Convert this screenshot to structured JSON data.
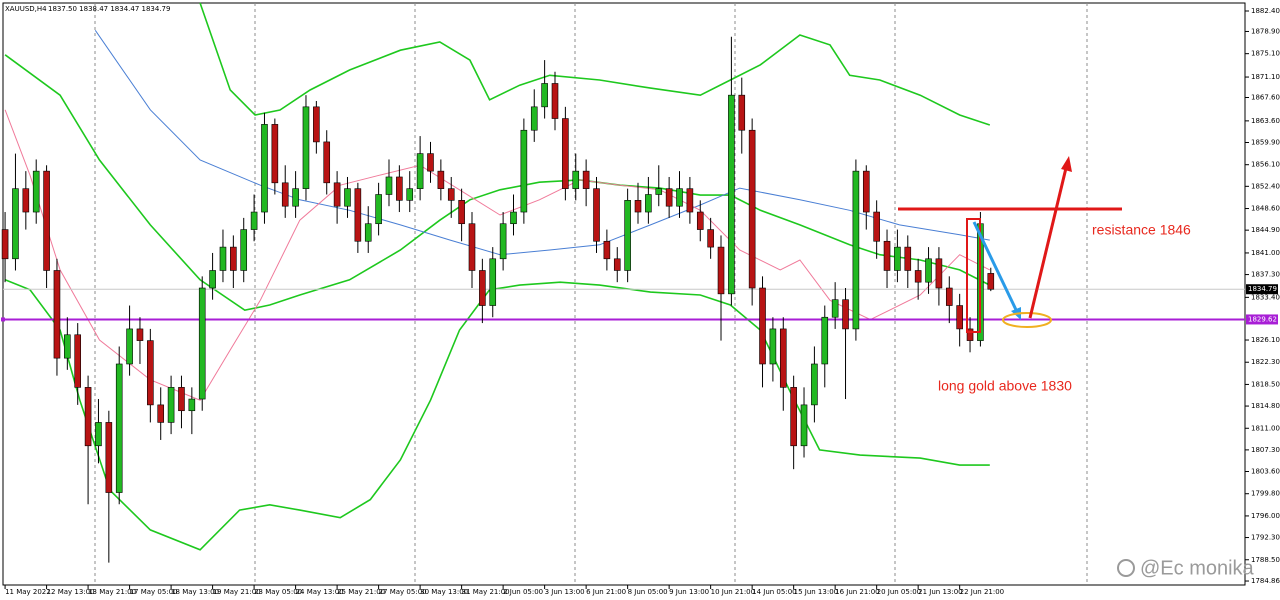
{
  "chart_data": {
    "type": "candlestick",
    "title": "XAUUSD,H4",
    "ohlc_readout": "1837.50 1838.47 1834.47 1834.79",
    "xlim": [
      -0.2,
      119.5
    ],
    "xticks": [
      {
        "value": 0,
        "label": "11 May 2022"
      },
      {
        "value": 4,
        "label": "12 May 13:00"
      },
      {
        "value": 8,
        "label": "13 May 21:00"
      },
      {
        "value": 12,
        "label": "17 May 05:00"
      },
      {
        "value": 16,
        "label": "18 May 13:00"
      },
      {
        "value": 20,
        "label": "19 May 21:00"
      },
      {
        "value": 24,
        "label": "23 May 05:00"
      },
      {
        "value": 28,
        "label": "24 May 13:00"
      },
      {
        "value": 32,
        "label": "25 May 21:00"
      },
      {
        "value": 36,
        "label": "27 May 05:00"
      },
      {
        "value": 40,
        "label": "30 May 13:00"
      },
      {
        "value": 44,
        "label": "31 May 21:00"
      },
      {
        "value": 48,
        "label": "2 Jun 05:00"
      },
      {
        "value": 52,
        "label": "3 Jun 13:00"
      },
      {
        "value": 56,
        "label": "6 Jun 21:00"
      },
      {
        "value": 60,
        "label": "8 Jun 05:00"
      },
      {
        "value": 64,
        "label": "9 Jun 13:00"
      },
      {
        "value": 68,
        "label": "10 Jun 21:00"
      },
      {
        "value": 72,
        "label": "14 Jun 05:00"
      },
      {
        "value": 76,
        "label": "15 Jun 13:00"
      },
      {
        "value": 80,
        "label": "16 Jun 21:00"
      },
      {
        "value": 84,
        "label": "20 Jun 05:00"
      },
      {
        "value": 88,
        "label": "21 Jun 13:00"
      },
      {
        "value": 92,
        "label": "22 Jun 21:00"
      }
    ],
    "ylim": [
      1784.18,
      1883.77
    ],
    "yticks": [
      {
        "value": 1882.4,
        "label": "1882.40"
      },
      {
        "value": 1878.9,
        "label": "1878.90"
      },
      {
        "value": 1875.1,
        "label": "1875.10"
      },
      {
        "value": 1871.1,
        "label": "1871.10"
      },
      {
        "value": 1867.6,
        "label": "1867.60"
      },
      {
        "value": 1863.6,
        "label": "1863.60"
      },
      {
        "value": 1859.9,
        "label": "1859.90"
      },
      {
        "value": 1856.1,
        "label": "1856.10"
      },
      {
        "value": 1852.4,
        "label": "1852.40"
      },
      {
        "value": 1848.6,
        "label": "1848.60"
      },
      {
        "value": 1844.9,
        "label": "1844.90"
      },
      {
        "value": 1841,
        "label": "1841.00"
      },
      {
        "value": 1837.3,
        "label": "1837.30"
      },
      {
        "value": 1833.4,
        "label": "1833.40"
      },
      {
        "value": 1826.1,
        "label": "1826.10"
      },
      {
        "value": 1822.3,
        "label": "1822.30"
      },
      {
        "value": 1818.5,
        "label": "1818.50"
      },
      {
        "value": 1814.8,
        "label": "1814.80"
      },
      {
        "value": 1811,
        "label": "1811.00"
      },
      {
        "value": 1807.3,
        "label": "1807.30"
      },
      {
        "value": 1803.6,
        "label": "1803.60"
      },
      {
        "value": 1799.8,
        "label": "1799.80"
      },
      {
        "value": 1796,
        "label": "1796.00"
      },
      {
        "value": 1792.3,
        "label": "1792.30"
      },
      {
        "value": 1788.5,
        "label": "1788.50"
      },
      1784.86
    ],
    "up_color": "#22b822",
    "down_color": "#b81414",
    "open": [
      1845,
      1840,
      1852,
      1848,
      1855,
      1838,
      1823,
      1827,
      1818,
      1808,
      1812,
      1800,
      1822,
      1828,
      1826,
      1815,
      1812,
      1818,
      1814,
      1816,
      1835,
      1838,
      1842,
      1838,
      1845,
      1848,
      1863,
      1853,
      1849,
      1852,
      1866,
      1860,
      1853,
      1849,
      1852,
      1843,
      1846,
      1851,
      1854,
      1850,
      1852,
      1858,
      1855,
      1852,
      1850,
      1846,
      1838,
      1832,
      1840,
      1846,
      1848,
      1862,
      1866,
      1870,
      1864,
      1852,
      1855,
      1852,
      1843,
      1840,
      1838,
      1850,
      1848,
      1851,
      1852,
      1849,
      1852,
      1848,
      1845,
      1842,
      1834,
      1868,
      1862,
      1835,
      1822,
      1828,
      1818,
      1808,
      1815,
      1822,
      1830,
      1833,
      1828,
      1855,
      1848,
      1843,
      1838,
      1842,
      1838,
      1836,
      1840,
      1835,
      1832,
      1828,
      1826,
      1837.5
    ],
    "high": [
      1848,
      1858,
      1855,
      1857,
      1856,
      1840,
      1830,
      1829,
      1820,
      1816,
      1814,
      1825,
      1832,
      1830,
      1828,
      1818,
      1820,
      1820,
      1818,
      1837,
      1841,
      1845,
      1844,
      1847,
      1851,
      1865,
      1864,
      1856,
      1855,
      1868,
      1867,
      1862,
      1855,
      1854,
      1853,
      1849,
      1853,
      1857,
      1856,
      1855,
      1861,
      1860,
      1857,
      1854,
      1852,
      1848,
      1840,
      1842,
      1848,
      1851,
      1864,
      1869,
      1874,
      1872,
      1866,
      1858,
      1857,
      1854,
      1845,
      1842,
      1852,
      1853,
      1854,
      1856,
      1854,
      1855,
      1854,
      1850,
      1847,
      1844,
      1878,
      1871,
      1864,
      1837,
      1830,
      1830,
      1820,
      1818,
      1825,
      1832,
      1836,
      1835,
      1857,
      1856,
      1850,
      1845,
      1845,
      1844,
      1840,
      1842,
      1842,
      1837,
      1834,
      1830,
      1848,
      1838.47
    ],
    "low": [
      1836,
      1838,
      1845,
      1846,
      1835,
      1820,
      1821,
      1815,
      1798,
      1805,
      1788,
      1798,
      1820,
      1822,
      1812,
      1809,
      1810,
      1811,
      1810,
      1814,
      1833,
      1836,
      1835,
      1836,
      1843,
      1846,
      1851,
      1847,
      1847,
      1850,
      1858,
      1851,
      1846,
      1847,
      1841,
      1841,
      1844,
      1849,
      1848,
      1848,
      1850,
      1853,
      1850,
      1847,
      1843,
      1835,
      1829,
      1830,
      1838,
      1844,
      1846,
      1860,
      1864,
      1862,
      1850,
      1850,
      1849,
      1841,
      1838,
      1836,
      1836,
      1846,
      1846,
      1849,
      1847,
      1847,
      1846,
      1843,
      1840,
      1826,
      1832,
      1858,
      1832,
      1818,
      1819,
      1814,
      1804,
      1806,
      1812,
      1818,
      1828,
      1816,
      1826,
      1845,
      1840,
      1835,
      1836,
      1835,
      1833,
      1834,
      1832,
      1829,
      1825,
      1824,
      1825,
      1834.47
    ],
    "close": [
      1840,
      1852,
      1848,
      1855,
      1838,
      1823,
      1827,
      1818,
      1808,
      1812,
      1800,
      1822,
      1828,
      1826,
      1815,
      1812,
      1818,
      1814,
      1816,
      1835,
      1838,
      1842,
      1838,
      1845,
      1848,
      1863,
      1853,
      1849,
      1852,
      1866,
      1860,
      1853,
      1849,
      1852,
      1843,
      1846,
      1851,
      1854,
      1850,
      1852,
      1858,
      1855,
      1852,
      1850,
      1846,
      1838,
      1832,
      1840,
      1846,
      1848,
      1862,
      1866,
      1870,
      1864,
      1852,
      1855,
      1852,
      1843,
      1840,
      1838,
      1850,
      1848,
      1851,
      1852,
      1849,
      1852,
      1848,
      1845,
      1842,
      1834,
      1868,
      1862,
      1835,
      1822,
      1828,
      1818,
      1808,
      1815,
      1822,
      1830,
      1833,
      1828,
      1855,
      1848,
      1843,
      1838,
      1842,
      1838,
      1836,
      1840,
      1835,
      1832,
      1828,
      1826,
      1846,
      1834.79
    ],
    "overlays": [
      {
        "color": "#1ec81e",
        "x": [
          18.8,
          21.7,
          24.1,
          26.5,
          29.4,
          33.2,
          38.1,
          41.9,
          44.8,
          46.7,
          49.6,
          52.5,
          57.3,
          62.2,
          67.0,
          69.9,
          72.8,
          76.6,
          79.5,
          81.4,
          84.3,
          88.2,
          92.0,
          94.9
        ],
        "values": [
          1883.77,
          1868.88,
          1864.6,
          1865.46,
          1868.88,
          1872.3,
          1875.7,
          1877.1,
          1874.0,
          1867.2,
          1869.7,
          1871.4,
          1870.6,
          1869.2,
          1868.0,
          1870.6,
          1873.2,
          1878.3,
          1876.6,
          1871.4,
          1870.6,
          1868.0,
          1864.6,
          1862.9
        ]
      },
      {
        "color": "#1ec81e",
        "x": [
          0,
          5.3,
          9.1,
          14.0,
          18.8,
          23.1,
          25.5,
          28.4,
          33.2,
          38.1,
          41.9,
          44.8,
          47.7,
          51.5,
          55.4,
          59.3,
          63.1,
          67.0,
          69.9,
          72.8,
          76.6,
          81.4,
          84.3,
          88.2,
          92.0,
          94.9
        ],
        "values": [
          1874.9,
          1868.0,
          1856.9,
          1845.8,
          1836.4,
          1831.2,
          1832.1,
          1833.8,
          1836.4,
          1841.5,
          1846.6,
          1850.1,
          1851.8,
          1853.1,
          1853.5,
          1852.6,
          1852.1,
          1850.9,
          1850.9,
          1848.3,
          1845.8,
          1842.4,
          1840.7,
          1839.8,
          1838.1,
          1835.5
        ]
      },
      {
        "color": "#1ec81e",
        "x": [
          0,
          2.4,
          5.3,
          7.2,
          10.1,
          14.0,
          18.8,
          22.6,
          25.5,
          28.4,
          32.3,
          35.2,
          38.1,
          41.0,
          43.8,
          46.7,
          49.6,
          53.5,
          57.3,
          62.2,
          67.0,
          69.9,
          72.8,
          75.6,
          78.5,
          82.4,
          88.2,
          92.0,
          94.9
        ],
        "values": [
          1836.4,
          1834.7,
          1827.8,
          1815.8,
          1800.4,
          1793.6,
          1790.2,
          1797.0,
          1797.9,
          1797.0,
          1795.7,
          1798.8,
          1805.6,
          1815.8,
          1827.8,
          1834.7,
          1835.5,
          1836.0,
          1835.5,
          1834.3,
          1833.8,
          1832.1,
          1827.8,
          1817.5,
          1807.3,
          1806.4,
          1805.9,
          1804.7,
          1804.7
        ]
      },
      {
        "color": "#4a7fd4",
        "x": [
          8.7,
          14.0,
          18.8,
          24.6,
          28.4,
          33.2,
          38.1,
          42.9,
          47.7,
          52.5,
          57.3,
          62.2,
          67.0,
          70.8,
          76.6,
          81.4,
          86.2,
          92.0,
          94.9
        ],
        "values": [
          1879.1,
          1865.5,
          1856.9,
          1852.6,
          1850.1,
          1848.3,
          1845.8,
          1843.2,
          1840.7,
          1841.5,
          1842.4,
          1845.8,
          1849.2,
          1852.1,
          1850.1,
          1848.3,
          1845.8,
          1844.1,
          1843.2
        ]
      },
      {
        "color": "#f07a9a",
        "x": [
          0,
          2.4,
          5.3,
          9.1,
          14.0,
          18.8,
          21.7,
          24.6,
          28.4,
          32.3,
          36.1,
          40.0,
          43.8,
          47.7,
          51.5,
          55.4,
          59.3,
          63.1,
          67.0,
          70.8,
          74.7,
          76.6,
          79.5,
          83.4,
          88.2,
          92.0,
          94.9
        ],
        "values": [
          1865.5,
          1854.3,
          1838.1,
          1826.1,
          1819.3,
          1815.8,
          1824.4,
          1832.9,
          1846.6,
          1852.6,
          1854.3,
          1856.0,
          1851.8,
          1847.5,
          1850.1,
          1853.5,
          1852.6,
          1851.8,
          1848.3,
          1841.5,
          1838.1,
          1839.8,
          1832.9,
          1829.6,
          1833.8,
          1840.7,
          1838.1
        ]
      }
    ],
    "level": {
      "value": 1829.62,
      "color": "#a81ed6"
    },
    "last_price": 1834.79,
    "annotations": [
      "resistance 1846",
      "long gold above 1830"
    ],
    "watermark": "@Ec monika"
  }
}
